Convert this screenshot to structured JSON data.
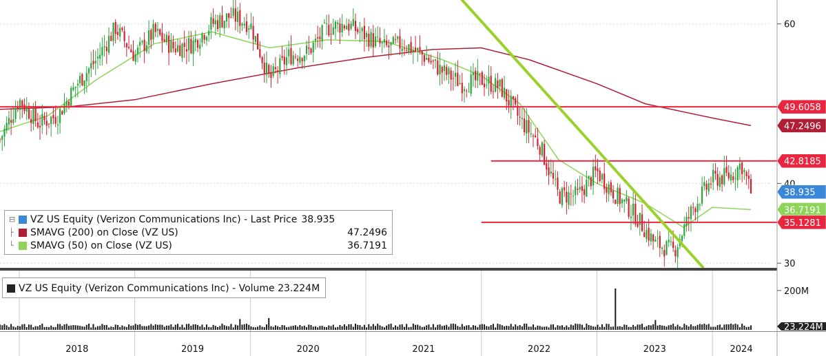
{
  "chart_data": {
    "type": "candlestick",
    "price_panel": {
      "y_ticks": [
        60,
        40,
        30
      ],
      "ylim": [
        29.5,
        63
      ],
      "legend": [
        {
          "label": "VZ US Equity (Verizon Communications Inc) - Last Price",
          "value": "38.935",
          "color": "#3a86d8"
        },
        {
          "label": "SMAVG (200)  on Close (VZ US)",
          "value": "47.2496",
          "color": "#b01e35"
        },
        {
          "label": "SMAVG (50)  on Close (VZ US)",
          "value": "36.7191",
          "color": "#8ed45a"
        }
      ],
      "flags": [
        {
          "text": "49.6058",
          "value": 49.6058,
          "color": "#e8263f"
        },
        {
          "text": "47.2496",
          "value": 47.2496,
          "color": "#b01e35"
        },
        {
          "text": "42.8185",
          "value": 42.8185,
          "color": "#e8263f"
        },
        {
          "text": "38.935",
          "value": 38.935,
          "color": "#3a86d8"
        },
        {
          "text": "36.7191",
          "value": 36.7191,
          "color": "#8ed45a"
        },
        {
          "text": "35.1281",
          "value": 35.1281,
          "color": "#e8263f"
        }
      ],
      "horizontal_lines": [
        {
          "y": 49.6058,
          "x_start": "2017-11",
          "x_end": "2024-06",
          "color": "#e8263f"
        },
        {
          "y": 42.8185,
          "x_start": "2022-02",
          "x_end": "2024-06",
          "color": "#e8263f"
        },
        {
          "y": 35.1281,
          "x_start": "2022-01",
          "x_end": "2024-06",
          "color": "#e8263f"
        }
      ],
      "trend_line": {
        "color": "#9ad12a",
        "points": [
          [
            "2021-11",
            63
          ],
          [
            "2023-12",
            29.5
          ]
        ]
      },
      "price_series": [
        [
          "2017-11",
          45.5
        ],
        [
          "2018-01",
          50.5
        ],
        [
          "2018-03",
          47.5
        ],
        [
          "2018-05",
          48.5
        ],
        [
          "2018-07",
          52.5
        ],
        [
          "2018-09",
          55.5
        ],
        [
          "2018-11",
          59.5
        ],
        [
          "2019-01",
          56
        ],
        [
          "2019-03",
          59
        ],
        [
          "2019-05",
          57
        ],
        [
          "2019-07",
          57.5
        ],
        [
          "2019-09",
          60
        ],
        [
          "2019-11",
          61
        ],
        [
          "2020-01",
          60
        ],
        [
          "2020-03",
          53
        ],
        [
          "2020-05",
          56
        ],
        [
          "2020-07",
          56.5
        ],
        [
          "2020-09",
          59.5
        ],
        [
          "2020-11",
          60
        ],
        [
          "2021-01",
          58.5
        ],
        [
          "2021-03",
          57
        ],
        [
          "2021-05",
          57.5
        ],
        [
          "2021-07",
          56
        ],
        [
          "2021-09",
          54
        ],
        [
          "2021-11",
          52.5
        ],
        [
          "2022-01",
          53
        ],
        [
          "2022-03",
          52
        ],
        [
          "2022-05",
          48
        ],
        [
          "2022-07",
          45
        ],
        [
          "2022-09",
          38.5
        ],
        [
          "2022-11",
          38.5
        ],
        [
          "2023-01",
          41.5
        ],
        [
          "2023-03",
          38.5
        ],
        [
          "2023-05",
          36
        ],
        [
          "2023-07",
          32.5
        ],
        [
          "2023-09",
          31.5
        ],
        [
          "2023-11",
          37
        ],
        [
          "2024-01",
          40.5
        ],
        [
          "2024-03",
          41
        ],
        [
          "2024-04",
          42.5
        ],
        [
          "2024-05",
          38.935
        ]
      ],
      "sma200": [
        [
          "2017-11",
          49.3
        ],
        [
          "2018-06",
          49.6
        ],
        [
          "2019-01",
          50.5
        ],
        [
          "2019-09",
          52.5
        ],
        [
          "2020-06",
          54.5
        ],
        [
          "2021-01",
          55.8
        ],
        [
          "2021-08",
          56.8
        ],
        [
          "2022-01",
          57
        ],
        [
          "2022-06",
          55.5
        ],
        [
          "2023-01",
          52.5
        ],
        [
          "2023-06",
          50
        ],
        [
          "2024-01",
          48.2
        ],
        [
          "2024-05",
          47.2496
        ]
      ],
      "sma50": [
        [
          "2017-11",
          46.5
        ],
        [
          "2018-04",
          48.5
        ],
        [
          "2018-09",
          53
        ],
        [
          "2019-03",
          57.5
        ],
        [
          "2019-09",
          59
        ],
        [
          "2020-03",
          57
        ],
        [
          "2020-09",
          58
        ],
        [
          "2021-03",
          57.8
        ],
        [
          "2021-09",
          55.5
        ],
        [
          "2022-01",
          53.5
        ],
        [
          "2022-05",
          50
        ],
        [
          "2022-09",
          43
        ],
        [
          "2023-01",
          40
        ],
        [
          "2023-06",
          37.5
        ],
        [
          "2023-10",
          34.5
        ],
        [
          "2024-01",
          37
        ],
        [
          "2024-05",
          36.7191
        ]
      ]
    },
    "volume_panel": {
      "legend": {
        "label": "VZ US Equity (Verizon Communications Inc) - Volume 23.224M",
        "color": "#222222"
      },
      "y_ticks": [
        "200M"
      ],
      "last_flag": "23.224M",
      "ylim_millions": [
        0,
        280
      ],
      "typical_millions": 22,
      "spikes": [
        [
          "2019-12",
          55
        ],
        [
          "2020-03",
          60
        ],
        [
          "2023-03",
          210
        ],
        [
          "2023-07",
          50
        ]
      ]
    },
    "x_axis": {
      "labels": [
        "2018",
        "2019",
        "2020",
        "2021",
        "2022",
        "2023",
        "2024"
      ],
      "range": [
        "2017-11",
        "2024-07"
      ]
    }
  }
}
